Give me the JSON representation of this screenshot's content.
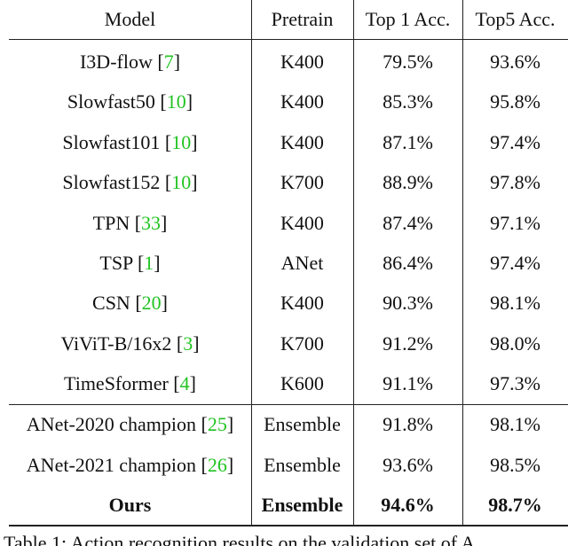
{
  "table": {
    "header": [
      "Model",
      "Pretrain",
      "Top 1 Acc.",
      "Top5 Acc."
    ],
    "groups": [
      [
        {
          "model": "I3D-flow",
          "cite": "7",
          "pretrain": "K400",
          "top1": "79.5%",
          "top5": "93.6%"
        },
        {
          "model": "Slowfast50",
          "cite": "10",
          "pretrain": "K400",
          "top1": "85.3%",
          "top5": "95.8%"
        },
        {
          "model": "Slowfast101",
          "cite": "10",
          "pretrain": "K400",
          "top1": "87.1%",
          "top5": "97.4%"
        },
        {
          "model": "Slowfast152",
          "cite": "10",
          "pretrain": "K700",
          "top1": "88.9%",
          "top5": "97.8%"
        },
        {
          "model": "TPN",
          "cite": "33",
          "pretrain": "K400",
          "top1": "87.4%",
          "top5": "97.1%"
        },
        {
          "model": "TSP",
          "cite": "1",
          "pretrain": "ANet",
          "top1": "86.4%",
          "top5": "97.4%"
        },
        {
          "model": "CSN",
          "cite": "20",
          "pretrain": "K400",
          "top1": "90.3%",
          "top5": "98.1%"
        },
        {
          "model": "ViViT-B/16x2",
          "cite": "3",
          "pretrain": "K700",
          "top1": "91.2%",
          "top5": "98.0%"
        },
        {
          "model": "TimeSformer",
          "cite": "4",
          "pretrain": "K600",
          "top1": "91.1%",
          "top5": "97.3%"
        }
      ],
      [
        {
          "model": "ANet-2020 champion",
          "cite": "25",
          "pretrain": "Ensemble",
          "top1": "91.8%",
          "top5": "98.1%"
        },
        {
          "model": "ANet-2021 champion",
          "cite": "26",
          "pretrain": "Ensemble",
          "top1": "93.6%",
          "top5": "98.5%"
        },
        {
          "model": "Ours",
          "pretrain": "Ensemble",
          "top1": "94.6%",
          "top5": "98.7%",
          "bold": true
        }
      ]
    ],
    "caption": "Table 1: Action recognition results on the validation set of A"
  }
}
